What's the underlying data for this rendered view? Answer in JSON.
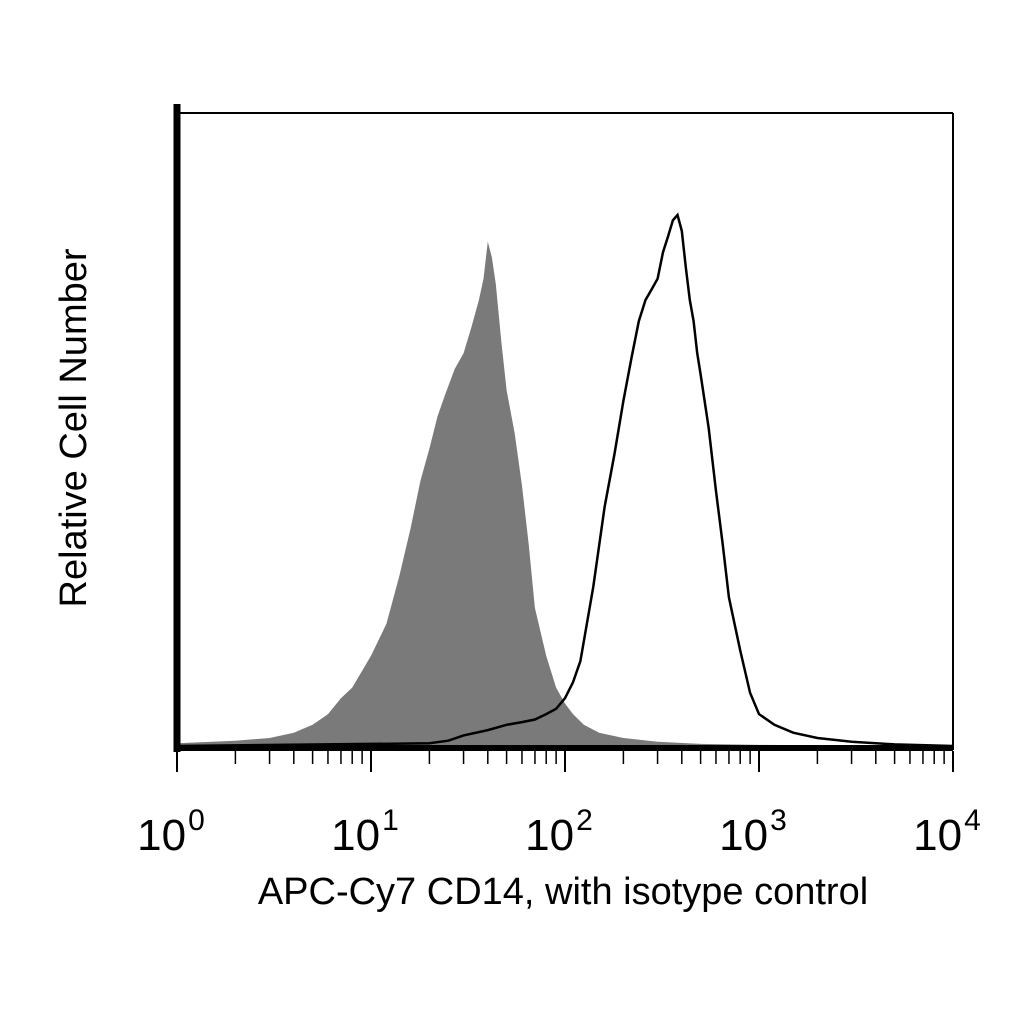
{
  "chart_data": {
    "type": "area",
    "title": "",
    "xlabel": "APC-Cy7 CD14, with isotype control",
    "ylabel": "Relative Cell Number",
    "x_scale": "log",
    "xlim": [
      1,
      10000
    ],
    "ylim": [
      0,
      100
    ],
    "grid": false,
    "legend": "none",
    "x_ticks": [
      {
        "base": "10",
        "exp": "0"
      },
      {
        "base": "10",
        "exp": "1"
      },
      {
        "base": "10",
        "exp": "2"
      },
      {
        "base": "10",
        "exp": "3"
      },
      {
        "base": "10",
        "exp": "4"
      }
    ],
    "y_ticks": [],
    "series": [
      {
        "style": "filled",
        "color": "#7a7a7a",
        "x": [
          1,
          2,
          3,
          4,
          5,
          6,
          7,
          8,
          10,
          12,
          14,
          16,
          18,
          20,
          22,
          24,
          27,
          30,
          33,
          36,
          38,
          40,
          42,
          44,
          47,
          50,
          55,
          60,
          65,
          70,
          80,
          90,
          100,
          110,
          125,
          150,
          200,
          300,
          500,
          1000,
          10000
        ],
        "y": [
          0.5,
          1,
          1.5,
          2.5,
          4,
          6,
          9,
          11,
          17,
          23,
          32,
          41,
          50,
          56,
          62,
          66,
          71,
          74,
          79,
          84,
          88,
          95,
          92,
          87,
          76,
          67,
          59,
          49,
          38,
          26,
          17,
          11,
          8,
          6,
          4,
          2.5,
          1.5,
          0.8,
          0.4,
          0.2,
          0
        ]
      },
      {
        "style": "outline",
        "color": "#000000",
        "x": [
          1,
          20,
          25,
          30,
          40,
          50,
          60,
          70,
          80,
          90,
          100,
          110,
          120,
          140,
          160,
          180,
          200,
          220,
          240,
          260,
          280,
          300,
          320,
          340,
          360,
          380,
          400,
          420,
          440,
          460,
          480,
          500,
          550,
          600,
          650,
          700,
          800,
          900,
          1000,
          1200,
          1500,
          2000,
          3000,
          5000,
          10000
        ],
        "y": [
          0,
          0.5,
          1,
          2,
          3,
          4,
          4.5,
          5,
          6,
          7,
          9,
          12,
          16,
          30,
          45,
          55,
          65,
          73,
          80,
          84,
          86,
          88,
          93,
          96,
          99,
          100,
          97,
          90,
          84,
          80,
          74,
          70,
          60,
          48,
          38,
          28,
          18,
          10,
          6,
          4,
          2.5,
          1.5,
          0.8,
          0.3,
          0
        ]
      }
    ]
  }
}
